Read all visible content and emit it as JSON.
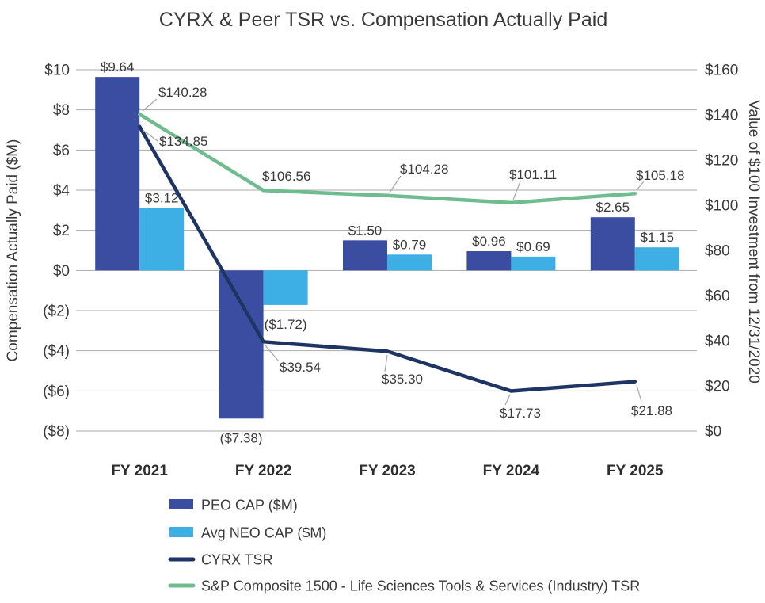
{
  "chart_data": {
    "type": "bar",
    "subtype": "bar-line-combo",
    "title": "CYRX & Peer TSR vs. Compensation Actually Paid",
    "categories": [
      "FY 2021",
      "FY 2022",
      "FY 2023",
      "FY 2024",
      "FY 2025"
    ],
    "left_axis": {
      "title": "Compensation Actually Paid ($M)",
      "min": -8,
      "max": 10,
      "tick_step": 2,
      "tick_labels": [
        "$10",
        "$8",
        "$6",
        "$4",
        "$2",
        "$0",
        "($2)",
        "($4)",
        "($6)",
        "($8)"
      ],
      "tick_values": [
        10,
        8,
        6,
        4,
        2,
        0,
        -2,
        -4,
        -6,
        -8
      ]
    },
    "right_axis": {
      "title": "Value of $100 Investment from 12/31/2020",
      "min": 0,
      "max": 160,
      "tick_step": 20,
      "tick_labels": [
        "$160",
        "$140",
        "$120",
        "$100",
        "$80",
        "$60",
        "$40",
        "$20",
        "$0"
      ],
      "tick_values": [
        160,
        140,
        120,
        100,
        80,
        60,
        40,
        20,
        0
      ]
    },
    "series": [
      {
        "name": "PEO CAP ($M)",
        "type": "bar",
        "axis": "left",
        "color": "#3B4DA1",
        "values": [
          9.64,
          -7.38,
          1.5,
          0.96,
          2.65
        ],
        "labels": [
          "$9.64",
          "($7.38)",
          "$1.50",
          "$0.96",
          "$2.65"
        ]
      },
      {
        "name": "Avg NEO CAP ($M)",
        "type": "bar",
        "axis": "left",
        "color": "#3DAFE4",
        "values": [
          3.12,
          -1.72,
          0.79,
          0.69,
          1.15
        ],
        "labels": [
          "$3.12",
          "($1.72)",
          "$0.79",
          "$0.69",
          "$1.15"
        ]
      },
      {
        "name": "CYRX TSR",
        "type": "line",
        "axis": "right",
        "color": "#1E3564",
        "values": [
          134.85,
          39.54,
          35.3,
          17.73,
          21.88
        ],
        "labels": [
          "$134.85",
          "$39.54",
          "$35.30",
          "$17.73",
          "$21.88"
        ]
      },
      {
        "name": "S&P Composite 1500 - Life Sciences Tools & Services (Industry) TSR",
        "type": "line",
        "axis": "right",
        "color": "#6FBC8F",
        "values": [
          140.28,
          106.56,
          104.28,
          101.11,
          105.18
        ],
        "labels": [
          "$140.28",
          "$106.56",
          "$104.28",
          "$101.11",
          "$105.18"
        ]
      }
    ],
    "colors": {
      "negative_label": "#C00000",
      "grid": "#A9A9A9",
      "leader": "#A6A6A6",
      "text": "#3A3A3A"
    },
    "grid": true,
    "legend_position": "bottom-left"
  }
}
